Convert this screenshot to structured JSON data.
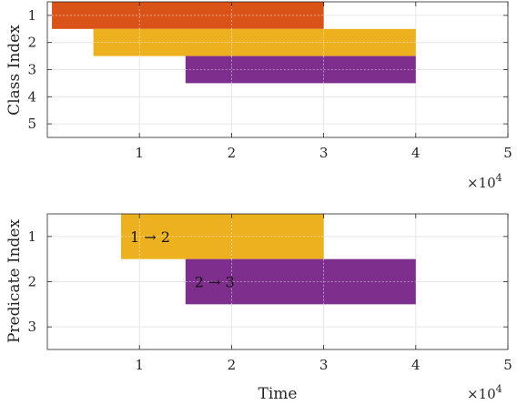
{
  "chart_data": [
    {
      "type": "bar",
      "orientation": "horizontal",
      "ylabel": "Class Index",
      "yticks": [
        1,
        2,
        3,
        4,
        5
      ],
      "ylim": [
        0.5,
        5.5
      ],
      "xticks": [
        1,
        2,
        3,
        4,
        5
      ],
      "xlim": [
        0.0,
        5.0
      ],
      "x_multiplier": "×10^4",
      "grid": true,
      "bars": [
        {
          "row": 1,
          "start": 0.05,
          "end": 3.0,
          "color": "#d95319"
        },
        {
          "row": 2,
          "start": 0.5,
          "end": 4.0,
          "color": "#edb120"
        },
        {
          "row": 3,
          "start": 1.5,
          "end": 4.0,
          "color": "#7e2f8e"
        }
      ]
    },
    {
      "type": "bar",
      "orientation": "horizontal",
      "ylabel": "Predicate Index",
      "xlabel": "Time",
      "yticks": [
        1,
        2,
        3
      ],
      "ylim": [
        0.5,
        3.5
      ],
      "xticks": [
        1,
        2,
        3,
        4,
        5
      ],
      "xlim": [
        0.0,
        5.0
      ],
      "x_multiplier": "×10^4",
      "grid": true,
      "bars": [
        {
          "row": 1,
          "start": 0.8,
          "end": 3.0,
          "color": "#edb120",
          "label": "1 → 2"
        },
        {
          "row": 2,
          "start": 1.5,
          "end": 4.0,
          "color": "#7e2f8e",
          "label": "2 → 3"
        }
      ]
    }
  ],
  "multiplier_text": {
    "base": "×10",
    "exp": "4"
  }
}
